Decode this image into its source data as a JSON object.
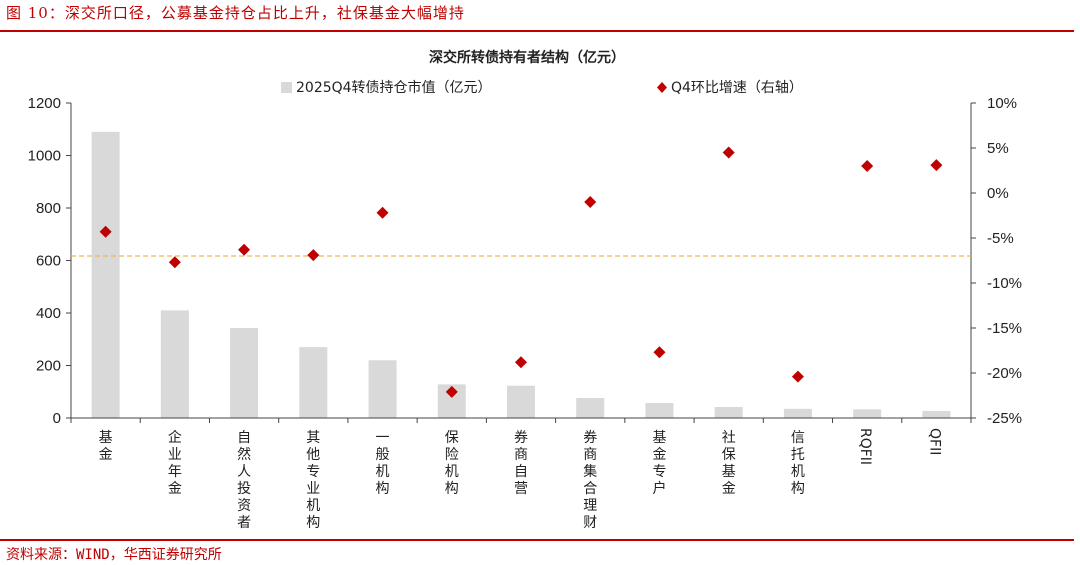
{
  "figure": {
    "title": "图 10：深交所口径，公募基金持仓占比上升，社保基金大幅增持",
    "source": "资料来源：WIND，华西证券研究所"
  },
  "chart_data": {
    "type": "bar",
    "title": "深交所转债持有者结构（亿元）",
    "categories": [
      "基金",
      "企业年金",
      "自然人投资者",
      "其他专业机构",
      "一般机构",
      "保险机构",
      "券商自营",
      "券商集合理财",
      "基金专户",
      "社保基金",
      "信托机构",
      "RQFII",
      "QFII"
    ],
    "category_text_orientation": [
      "vertical",
      "vertical",
      "vertical",
      "vertical",
      "vertical",
      "vertical",
      "vertical",
      "vertical",
      "vertical",
      "vertical",
      "vertical",
      "rotated",
      "rotated"
    ],
    "series": [
      {
        "name": "2025Q4转债持仓市值（亿元）",
        "type": "bar",
        "axis": "left",
        "color": "#d9d9d9",
        "values": [
          1090,
          410,
          343,
          270,
          220,
          128,
          123,
          76,
          57,
          42,
          35,
          33,
          27
        ]
      },
      {
        "name": "Q4环比增速（右轴）",
        "type": "scatter",
        "marker": "diamond",
        "axis": "right",
        "color": "#c00000",
        "values": [
          -4.3,
          -7.7,
          -6.3,
          -6.9,
          -2.2,
          -22.1,
          -18.8,
          -1.0,
          -17.7,
          4.5,
          -20.4,
          3.0,
          3.1
        ]
      }
    ],
    "y_left": {
      "min": 0,
      "max": 1200,
      "step": 200,
      "ticks": [
        "0",
        "200",
        "400",
        "600",
        "800",
        "1000",
        "1200"
      ]
    },
    "y_right": {
      "min": -25,
      "max": 10,
      "step": 5,
      "unit": "%",
      "ticks": [
        "-25%",
        "-20%",
        "-15%",
        "-10%",
        "-5%",
        "0%",
        "5%",
        "10%"
      ]
    },
    "reference_line": {
      "axis": "right",
      "value": -7,
      "color": "#f5b942",
      "style": "dashed"
    },
    "grid": false,
    "legend": "top"
  }
}
